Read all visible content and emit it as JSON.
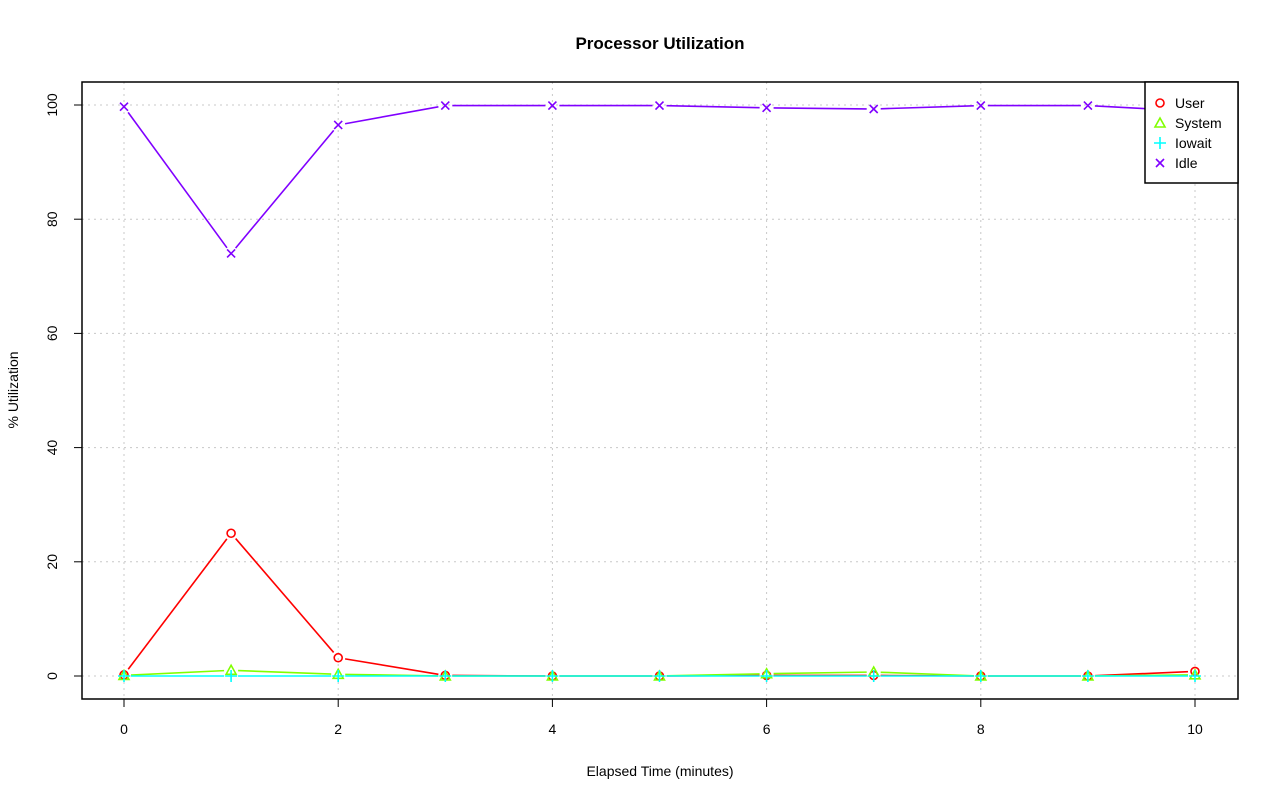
{
  "chart_data": {
    "type": "line",
    "title": "Processor Utilization",
    "xlabel": "Elapsed Time (minutes)",
    "ylabel": "% Utilization",
    "xlim": [
      0,
      10
    ],
    "ylim": [
      0,
      100
    ],
    "x_ticks": [
      0,
      2,
      4,
      6,
      8,
      10
    ],
    "y_ticks": [
      0,
      20,
      40,
      60,
      80,
      100
    ],
    "grid": true,
    "legend_position": "top-right",
    "x": [
      0,
      1,
      2,
      3,
      4,
      5,
      6,
      7,
      8,
      9,
      10
    ],
    "series": [
      {
        "name": "User",
        "color": "#ff0000",
        "marker": "circle",
        "values": [
          0.2,
          25.0,
          3.2,
          0.1,
          0.0,
          0.0,
          0.1,
          0.1,
          0.0,
          0.0,
          0.8
        ]
      },
      {
        "name": "System",
        "color": "#80ff00",
        "marker": "triangle",
        "values": [
          0.1,
          1.0,
          0.3,
          0.0,
          0.0,
          0.0,
          0.4,
          0.7,
          0.0,
          0.0,
          0.2
        ]
      },
      {
        "name": "Iowait",
        "color": "#00ffff",
        "marker": "plus",
        "values": [
          0,
          0,
          0,
          0,
          0,
          0,
          0,
          0,
          0,
          0,
          0
        ]
      },
      {
        "name": "Idle",
        "color": "#8000ff",
        "marker": "cross",
        "values": [
          99.7,
          74.0,
          96.5,
          99.9,
          99.9,
          99.9,
          99.5,
          99.3,
          99.9,
          99.9,
          98.9
        ]
      }
    ]
  }
}
